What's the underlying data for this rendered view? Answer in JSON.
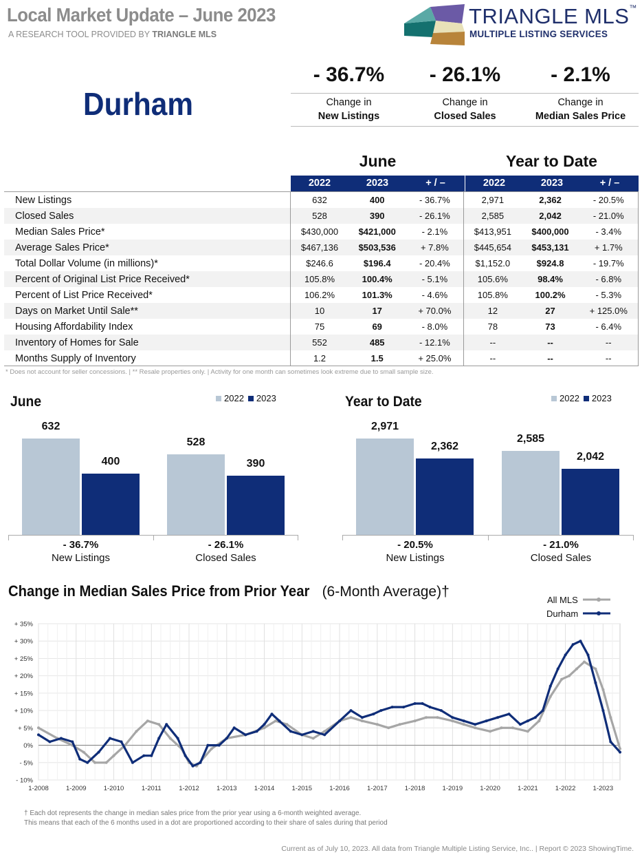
{
  "header": {
    "title": "Local Market Update – June 2023",
    "subtitle_prefix": "A RESEARCH TOOL PROVIDED BY",
    "subtitle_brand": "TRIANGLE MLS",
    "logo_name": "TRIANGLE MLS",
    "logo_tm": "™",
    "logo_tagline": "MULTIPLE LISTING SERVICES"
  },
  "city": "Durham",
  "kpis": [
    {
      "value": "- 36.7%",
      "line1": "Change in",
      "line2": "New Listings"
    },
    {
      "value": "- 26.1%",
      "line1": "Change in",
      "line2": "Closed Sales"
    },
    {
      "value": "- 2.1%",
      "line1": "Change in",
      "line2": "Median Sales Price"
    }
  ],
  "table": {
    "group_month": "June",
    "group_ytd": "Year to Date",
    "col_headers": [
      "2022",
      "2023",
      "+ / –",
      "2022",
      "2023",
      "+ / –"
    ],
    "rows": [
      {
        "label": "New Listings",
        "m22": "632",
        "m23": "400",
        "mchg": "- 36.7%",
        "y22": "2,971",
        "y23": "2,362",
        "ychg": "- 20.5%"
      },
      {
        "label": "Closed Sales",
        "m22": "528",
        "m23": "390",
        "mchg": "- 26.1%",
        "y22": "2,585",
        "y23": "2,042",
        "ychg": "- 21.0%"
      },
      {
        "label": "Median Sales Price*",
        "m22": "$430,000",
        "m23": "$421,000",
        "mchg": "- 2.1%",
        "y22": "$413,951",
        "y23": "$400,000",
        "ychg": "- 3.4%"
      },
      {
        "label": "Average Sales Price*",
        "m22": "$467,136",
        "m23": "$503,536",
        "mchg": "+ 7.8%",
        "y22": "$445,654",
        "y23": "$453,131",
        "ychg": "+ 1.7%"
      },
      {
        "label": "Total Dollar Volume (in millions)*",
        "m22": "$246.6",
        "m23": "$196.4",
        "mchg": "- 20.4%",
        "y22": "$1,152.0",
        "y23": "$924.8",
        "ychg": "- 19.7%"
      },
      {
        "label": "Percent of Original List Price Received*",
        "m22": "105.8%",
        "m23": "100.4%",
        "mchg": "- 5.1%",
        "y22": "105.6%",
        "y23": "98.4%",
        "ychg": "- 6.8%"
      },
      {
        "label": "Percent of List Price Received*",
        "m22": "106.2%",
        "m23": "101.3%",
        "mchg": "- 4.6%",
        "y22": "105.8%",
        "y23": "100.2%",
        "ychg": "- 5.3%"
      },
      {
        "label": "Days on Market Until Sale**",
        "m22": "10",
        "m23": "17",
        "mchg": "+ 70.0%",
        "y22": "12",
        "y23": "27",
        "ychg": "+ 125.0%"
      },
      {
        "label": "Housing Affordability Index",
        "m22": "75",
        "m23": "69",
        "mchg": "- 8.0%",
        "y22": "78",
        "y23": "73",
        "ychg": "- 6.4%"
      },
      {
        "label": "Inventory of Homes for Sale",
        "m22": "552",
        "m23": "485",
        "mchg": "- 12.1%",
        "y22": "--",
        "y23": "--",
        "ychg": "--"
      },
      {
        "label": "Months Supply of Inventory",
        "m22": "1.2",
        "m23": "1.5",
        "mchg": "+ 25.0%",
        "y22": "--",
        "y23": "--",
        "ychg": "--"
      }
    ],
    "footnote": "* Does not account for seller concessions.  |  ** Resale properties only.  |  Activity for one month can sometimes look extreme due to small sample size."
  },
  "colors": {
    "y2022": "#b8c7d5",
    "y2023": "#0f2d78",
    "all_mls": "#a6a6a6",
    "durham": "#0f2d78"
  },
  "chart_data": [
    {
      "type": "bar",
      "title": "June",
      "legend": [
        "2022",
        "2023"
      ],
      "categories": [
        "New Listings",
        "Closed Sales"
      ],
      "changes": [
        "- 36.7%",
        "- 26.1%"
      ],
      "series": [
        {
          "name": "2022",
          "values": [
            632,
            528
          ],
          "labels": [
            "632",
            "528"
          ]
        },
        {
          "name": "2023",
          "values": [
            400,
            390
          ],
          "labels": [
            "400",
            "390"
          ]
        }
      ],
      "ylim": [
        0,
        700
      ]
    },
    {
      "type": "bar",
      "title": "Year to Date",
      "legend": [
        "2022",
        "2023"
      ],
      "categories": [
        "New Listings",
        "Closed Sales"
      ],
      "changes": [
        "- 20.5%",
        "- 21.0%"
      ],
      "series": [
        {
          "name": "2022",
          "values": [
            2971,
            2585
          ],
          "labels": [
            "2,971",
            "2,585"
          ]
        },
        {
          "name": "2023",
          "values": [
            2362,
            2042
          ],
          "labels": [
            "2,362",
            "2,042"
          ]
        }
      ],
      "ylim": [
        0,
        3500
      ]
    },
    {
      "type": "line",
      "title": "Change in Median Sales Price from Prior Year",
      "title_suffix": "(6-Month Average)†",
      "ylim": [
        -10,
        35
      ],
      "yticks": [
        "- 10%",
        "- 5%",
        "0%",
        "+ 5%",
        "+ 10%",
        "+ 15%",
        "+ 20%",
        "+ 25%",
        "+ 30%",
        "+ 35%"
      ],
      "xticks": [
        "1-2008",
        "1-2009",
        "1-2010",
        "1-2011",
        "1-2012",
        "1-2013",
        "1-2014",
        "1-2015",
        "1-2016",
        "1-2017",
        "1-2018",
        "1-2019",
        "1-2020",
        "1-2021",
        "1-2022",
        "1-2023"
      ],
      "series": [
        {
          "name": "All MLS",
          "x": [
            2008.0,
            2008.5,
            2008.9,
            2009.2,
            2009.5,
            2009.8,
            2010.0,
            2010.3,
            2010.6,
            2010.9,
            2011.2,
            2011.5,
            2011.8,
            2012.0,
            2012.2,
            2012.6,
            2013.0,
            2013.5,
            2014.0,
            2014.3,
            2014.6,
            2015.0,
            2015.3,
            2015.6,
            2016.0,
            2016.3,
            2016.6,
            2017.0,
            2017.3,
            2017.6,
            2018.0,
            2018.3,
            2018.6,
            2019.0,
            2019.3,
            2019.6,
            2020.0,
            2020.3,
            2020.6,
            2021.0,
            2021.3,
            2021.6,
            2021.9,
            2022.1,
            2022.3,
            2022.5,
            2022.8,
            2023.0,
            2023.2,
            2023.45
          ],
          "y": [
            5,
            2,
            0,
            -2,
            -5,
            -5,
            -3,
            0,
            4,
            7,
            6,
            2,
            -1,
            -5,
            -6,
            -1,
            2,
            3,
            5,
            7,
            6,
            3,
            2,
            4,
            7,
            8,
            7,
            6,
            5,
            6,
            7,
            8,
            8,
            7,
            6,
            5,
            4,
            5,
            5,
            4,
            7,
            14,
            19,
            20,
            22,
            24,
            22,
            16,
            8,
            -1
          ]
        },
        {
          "name": "Durham",
          "x": [
            2008.0,
            2008.3,
            2008.6,
            2008.9,
            2009.1,
            2009.3,
            2009.6,
            2009.9,
            2010.2,
            2010.5,
            2010.8,
            2011.0,
            2011.2,
            2011.4,
            2011.7,
            2011.9,
            2012.1,
            2012.3,
            2012.5,
            2012.8,
            2013.0,
            2013.2,
            2013.5,
            2013.8,
            2014.0,
            2014.2,
            2014.4,
            2014.7,
            2015.0,
            2015.3,
            2015.6,
            2016.0,
            2016.3,
            2016.6,
            2016.9,
            2017.1,
            2017.4,
            2017.7,
            2018.0,
            2018.2,
            2018.4,
            2018.7,
            2019.0,
            2019.3,
            2019.6,
            2019.9,
            2020.2,
            2020.5,
            2020.8,
            2021.0,
            2021.2,
            2021.4,
            2021.6,
            2021.8,
            2022.0,
            2022.2,
            2022.4,
            2022.6,
            2022.8,
            2023.0,
            2023.2,
            2023.45
          ],
          "y": [
            3,
            1,
            2,
            1,
            -4,
            -5,
            -2,
            2,
            1,
            -5,
            -3,
            -3,
            2,
            6,
            2,
            -3,
            -6,
            -5,
            0,
            0,
            2,
            5,
            3,
            4,
            6,
            9,
            7,
            4,
            3,
            4,
            3,
            7,
            10,
            8,
            9,
            10,
            11,
            11,
            12,
            12,
            11,
            10,
            8,
            7,
            6,
            7,
            8,
            9,
            6,
            7,
            8,
            10,
            17,
            22,
            26,
            29,
            30,
            26,
            18,
            10,
            1,
            -2
          ]
        }
      ]
    }
  ],
  "line_note": [
    "† Each dot represents the change in median sales price from the prior year using a 6-month weighted average.",
    "This means that each of the 6 months used in a dot are proportioned according to their share of sales during that period"
  ],
  "credit": "Current as of July 10, 2023. All data from Triangle Multiple Listing Service, Inc..  |  Report © 2023 ShowingTime."
}
